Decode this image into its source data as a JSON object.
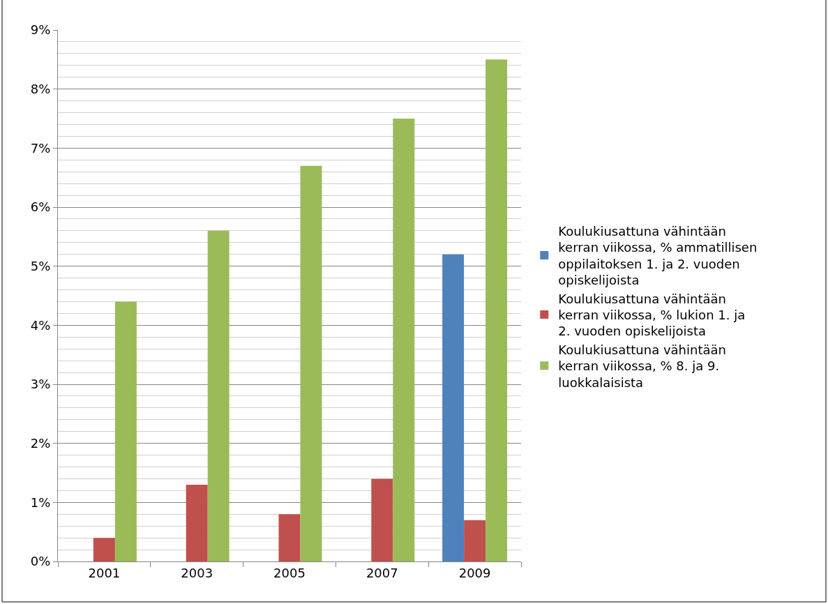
{
  "chart_data": {
    "type": "bar",
    "categories": [
      "2001",
      "2003",
      "2005",
      "2007",
      "2009"
    ],
    "series": [
      {
        "name": "Koulukiusattuna vähintään kerran viikossa, % ammatillisen oppilaitoksen 1. ja 2. vuoden opiskelijoista",
        "color": "#4f81bd",
        "values": [
          null,
          null,
          null,
          null,
          5.2
        ]
      },
      {
        "name": "Koulukiusattuna vähintään kerran viikossa, % lukion 1. ja 2. vuoden opiskelijoista",
        "color": "#c0504d",
        "values": [
          0.4,
          1.3,
          0.8,
          1.4,
          0.7
        ]
      },
      {
        "name": "Koulukiusattuna vähintään kerran viikossa, % 8. ja 9. luokkalaisista",
        "color": "#9bbb59",
        "values": [
          4.4,
          5.6,
          6.7,
          7.5,
          8.5
        ]
      }
    ],
    "ylim": [
      0,
      9
    ],
    "yticks": [
      {
        "value": 0,
        "label": "0%"
      },
      {
        "value": 0.2,
        "label": null
      },
      {
        "value": 0.4,
        "label": null
      },
      {
        "value": 0.6,
        "label": null
      },
      {
        "value": 0.8,
        "label": null
      },
      {
        "value": 1,
        "label": "1%"
      },
      {
        "value": 1.2,
        "label": null
      },
      {
        "value": 1.4,
        "label": null
      },
      {
        "value": 1.6,
        "label": null
      },
      {
        "value": 1.8,
        "label": null
      },
      {
        "value": 2,
        "label": "2%"
      },
      {
        "value": 2.2,
        "label": null
      },
      {
        "value": 2.4,
        "label": null
      },
      {
        "value": 2.6,
        "label": null
      },
      {
        "value": 2.8,
        "label": null
      },
      {
        "value": 3,
        "label": "3%"
      },
      {
        "value": 3.2,
        "label": null
      },
      {
        "value": 3.4,
        "label": null
      },
      {
        "value": 3.6,
        "label": null
      },
      {
        "value": 3.8,
        "label": null
      },
      {
        "value": 4,
        "label": "4%"
      },
      {
        "value": 4.2,
        "label": null
      },
      {
        "value": 4.4,
        "label": null
      },
      {
        "value": 4.6,
        "label": null
      },
      {
        "value": 4.8,
        "label": null
      },
      {
        "value": 5,
        "label": "5%"
      },
      {
        "value": 5.2,
        "label": null
      },
      {
        "value": 5.4,
        "label": null
      },
      {
        "value": 5.6,
        "label": null
      },
      {
        "value": 5.8,
        "label": null
      },
      {
        "value": 6,
        "label": "6%"
      },
      {
        "value": 6.2,
        "label": null
      },
      {
        "value": 6.4,
        "label": null
      },
      {
        "value": 6.6,
        "label": null
      },
      {
        "value": 6.8,
        "label": null
      },
      {
        "value": 7,
        "label": "7%"
      },
      {
        "value": 7.2,
        "label": null
      },
      {
        "value": 7.4,
        "label": null
      },
      {
        "value": 7.6,
        "label": null
      },
      {
        "value": 7.8,
        "label": null
      },
      {
        "value": 8,
        "label": "8%"
      },
      {
        "value": 8.2,
        "label": null
      },
      {
        "value": 8.4,
        "label": null
      },
      {
        "value": 8.6,
        "label": null
      },
      {
        "value": 8.8,
        "label": null
      },
      {
        "value": 9,
        "label": "9%"
      }
    ],
    "grid": "y",
    "legend": "right"
  }
}
